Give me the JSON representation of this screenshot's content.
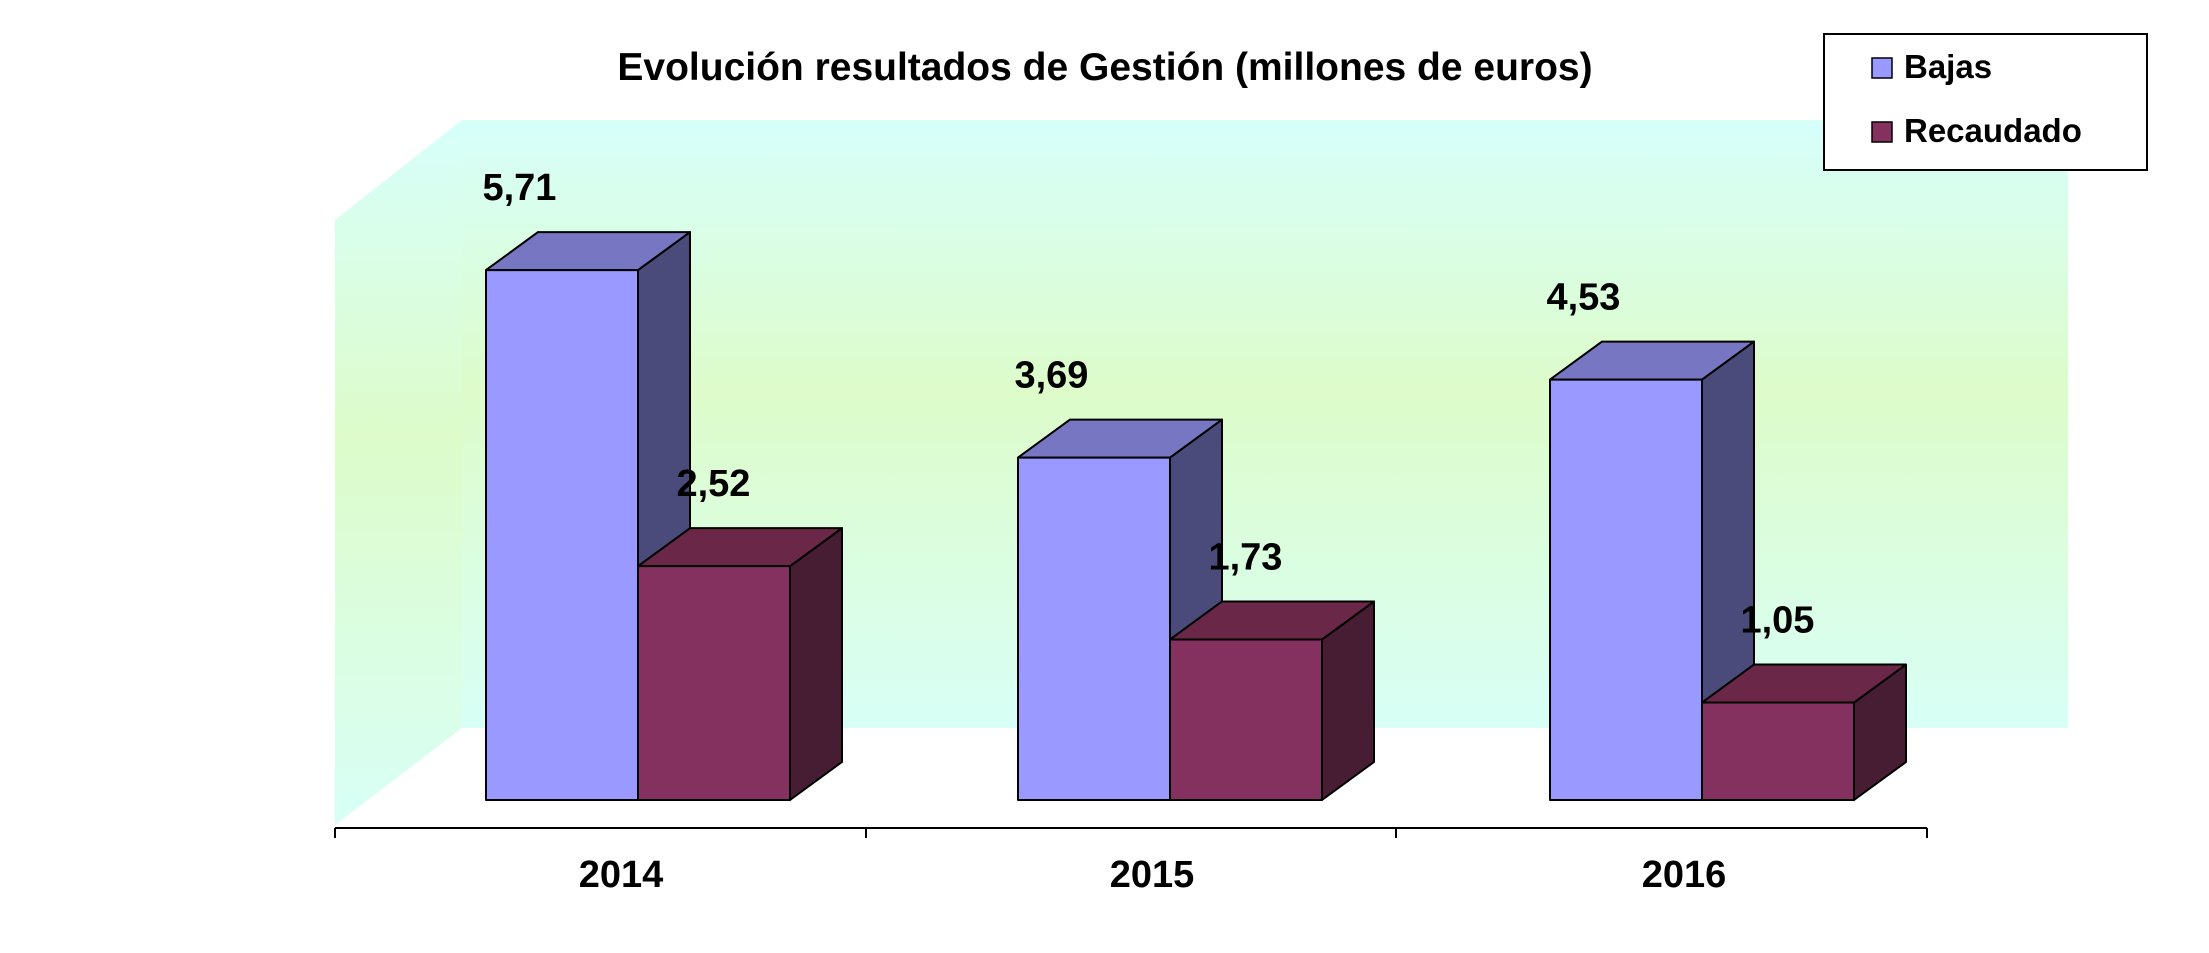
{
  "chart_data": {
    "type": "bar",
    "title": "Evolución resultados de Gestión (millones de euros)",
    "categories": [
      "2014",
      "2015",
      "2016"
    ],
    "series": [
      {
        "name": "Bajas",
        "values": [
          5.71,
          3.69,
          4.53
        ],
        "labels": [
          "5,71",
          "3,69",
          "4,53"
        ]
      },
      {
        "name": "Recaudado",
        "values": [
          2.52,
          1.73,
          1.05
        ],
        "labels": [
          "2,52",
          "1,73",
          "1,05"
        ]
      }
    ],
    "ylim": [
      0,
      6
    ],
    "three_d": true,
    "legend_position": "top-right",
    "grid": false
  },
  "colors": {
    "bajas_front": "#9999ff",
    "bajas_top": "#7676c2",
    "bajas_side": "#4a4a7b",
    "recaudado_front": "#84315f",
    "recaudado_top": "#6b2748",
    "recaudado_side": "#471d33"
  }
}
